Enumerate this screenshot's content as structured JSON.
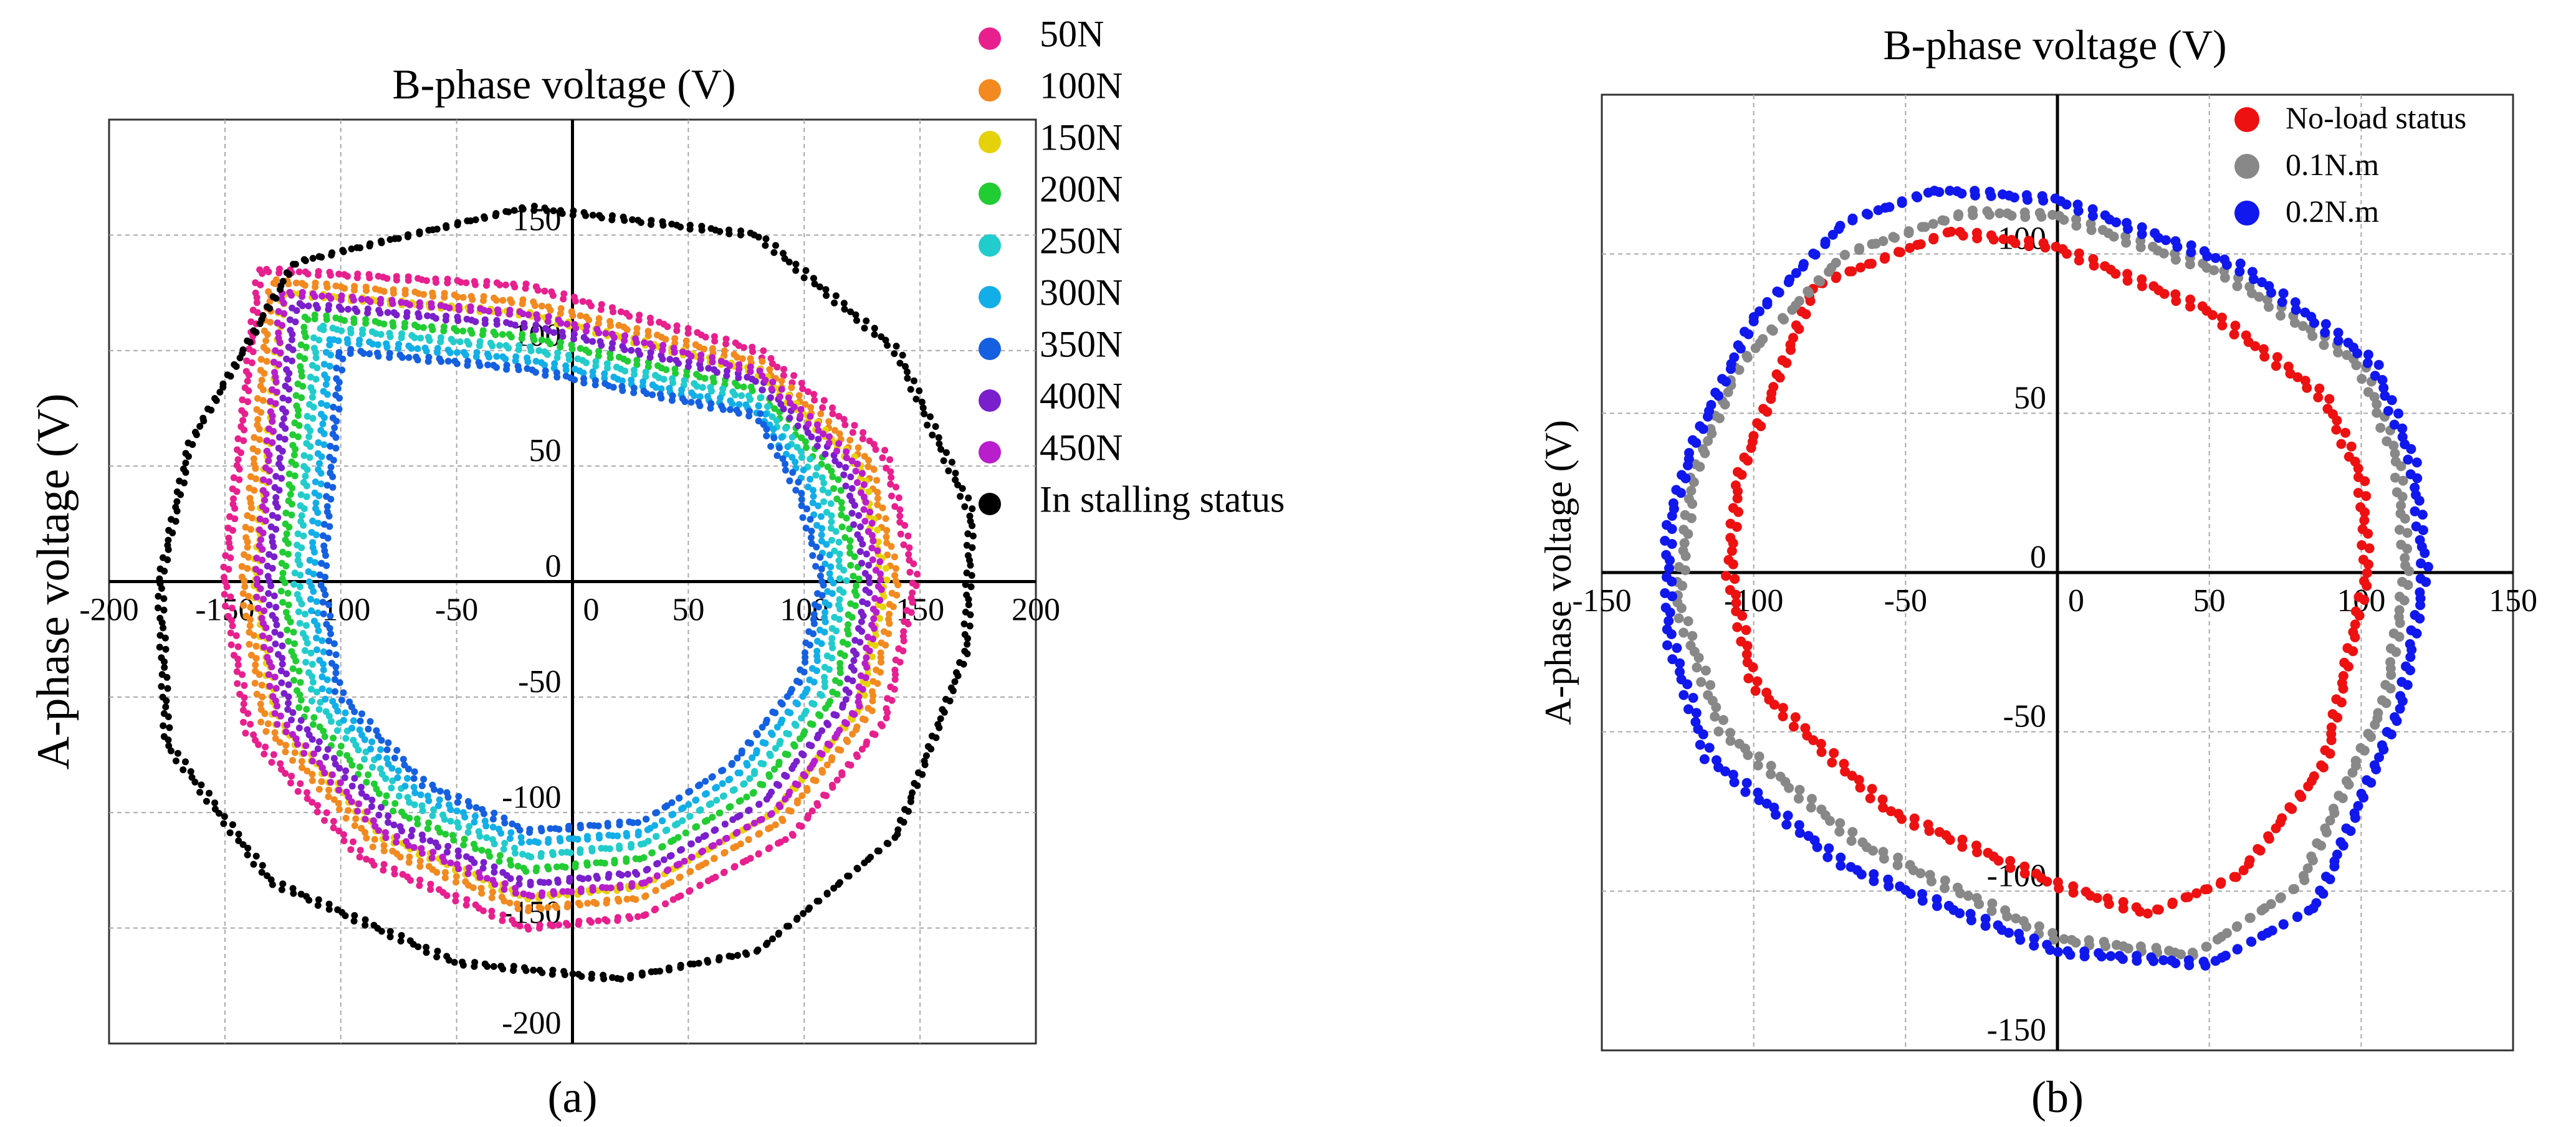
{
  "chart_data": [
    {
      "type": "scatter",
      "panel_label": "(a)",
      "title": "B-phase voltage (V)",
      "xlabel": "",
      "ylabel": "A-phase voltage (V)",
      "xlim": [
        -200,
        200
      ],
      "ylim": [
        -200,
        200
      ],
      "x_ticks": [
        -200,
        -150,
        -100,
        -50,
        0,
        50,
        100,
        150,
        200
      ],
      "y_ticks": [
        150,
        100,
        50,
        0,
        -50,
        -100,
        -150,
        -200
      ],
      "grid": true,
      "legend_position": "right",
      "series": [
        {
          "name": "50N",
          "color": "#e8208e",
          "shape": [
            [
              -135,
              135
            ],
            [
              -20,
              128
            ],
            [
              80,
              100
            ],
            [
              135,
              55
            ],
            [
              148,
              0
            ],
            [
              135,
              -60
            ],
            [
              95,
              -110
            ],
            [
              30,
              -145
            ],
            [
              -20,
              -150
            ],
            [
              -90,
              -120
            ],
            [
              -140,
              -65
            ],
            [
              -150,
              0
            ]
          ]
        },
        {
          "name": "100N",
          "color": "#f28a20",
          "shape": [
            [
              -130,
              130
            ],
            [
              -20,
              121
            ],
            [
              80,
              95
            ],
            [
              128,
              52
            ],
            [
              140,
              0
            ],
            [
              128,
              -57
            ],
            [
              90,
              -104
            ],
            [
              30,
              -137
            ],
            [
              -20,
              -142
            ],
            [
              -85,
              -114
            ],
            [
              -133,
              -62
            ],
            [
              -142,
              0
            ]
          ]
        },
        {
          "name": "150N",
          "color": "#e6d20a",
          "shape": [
            [
              -125,
              125
            ],
            [
              -20,
              116
            ],
            [
              80,
              91
            ],
            [
              124,
              50
            ],
            [
              135,
              0
            ],
            [
              124,
              -55
            ],
            [
              87,
              -100
            ],
            [
              30,
              -132
            ],
            [
              -20,
              -137
            ],
            [
              -82,
              -110
            ],
            [
              -128,
              -60
            ],
            [
              -137,
              0
            ]
          ]
        },
        {
          "name": "200N",
          "color": "#22cc33",
          "shape": [
            [
              -115,
              115
            ],
            [
              -20,
              106
            ],
            [
              80,
              83
            ],
            [
              113,
              46
            ],
            [
              123,
              0
            ],
            [
              113,
              -50
            ],
            [
              79,
              -91
            ],
            [
              30,
              -120
            ],
            [
              -20,
              -125
            ],
            [
              -75,
              -100
            ],
            [
              -117,
              -55
            ],
            [
              -125,
              0
            ]
          ]
        },
        {
          "name": "250N",
          "color": "#22cccc",
          "shape": [
            [
              -110,
              110
            ],
            [
              -20,
              101
            ],
            [
              80,
              79
            ],
            [
              108,
              44
            ],
            [
              117,
              0
            ],
            [
              108,
              -48
            ],
            [
              75,
              -87
            ],
            [
              30,
              -114
            ],
            [
              -20,
              -119
            ],
            [
              -71,
              -95
            ],
            [
              -111,
              -52
            ],
            [
              -119,
              0
            ]
          ]
        },
        {
          "name": "300N",
          "color": "#12aee8",
          "shape": [
            [
              -105,
              105
            ],
            [
              -20,
              96
            ],
            [
              80,
              75
            ],
            [
              103,
              41
            ],
            [
              112,
              0
            ],
            [
              103,
              -45
            ],
            [
              72,
              -83
            ],
            [
              30,
              -109
            ],
            [
              -20,
              -113
            ],
            [
              -68,
              -91
            ],
            [
              -106,
              -50
            ],
            [
              -113,
              0
            ]
          ]
        },
        {
          "name": "350N",
          "color": "#1560e0",
          "shape": [
            [
              -100,
              100
            ],
            [
              -20,
              92
            ],
            [
              80,
              72
            ],
            [
              98,
              39
            ],
            [
              108,
              0
            ],
            [
              98,
              -43
            ],
            [
              69,
              -79
            ],
            [
              30,
              -104
            ],
            [
              -20,
              -108
            ],
            [
              -65,
              -87
            ],
            [
              -101,
              -48
            ],
            [
              -108,
              0
            ]
          ]
        },
        {
          "name": "400N",
          "color": "#7a1fcc",
          "shape": [
            [
              -120,
              120
            ],
            [
              -20,
              111
            ],
            [
              80,
              87
            ],
            [
              118,
              48
            ],
            [
              128,
              0
            ],
            [
              118,
              -52
            ],
            [
              83,
              -95
            ],
            [
              30,
              -126
            ],
            [
              -20,
              -131
            ],
            [
              -78,
              -105
            ],
            [
              -122,
              -57
            ],
            [
              -131,
              0
            ]
          ]
        },
        {
          "name": "450N",
          "color": "#b81ecb",
          "shape": [
            [
              -125,
              125
            ],
            [
              -20,
              116
            ],
            [
              80,
              91
            ],
            [
              123,
              50
            ],
            [
              133,
              0
            ],
            [
              123,
              -55
            ],
            [
              87,
              -100
            ],
            [
              30,
              -131
            ],
            [
              -20,
              -136
            ],
            [
              -82,
              -109
            ],
            [
              -127,
              -60
            ],
            [
              -136,
              0
            ]
          ]
        },
        {
          "name": "In stalling status",
          "color": "#000000",
          "shape": [
            [
              -120,
              138
            ],
            [
              -20,
              162
            ],
            [
              80,
              150
            ],
            [
              140,
              100
            ],
            [
              172,
              30
            ],
            [
              170,
              -30
            ],
            [
              140,
              -110
            ],
            [
              80,
              -160
            ],
            [
              20,
              -172
            ],
            [
              -50,
              -165
            ],
            [
              -130,
              -130
            ],
            [
              -175,
              -70
            ],
            [
              -178,
              0
            ],
            [
              -165,
              60
            ]
          ]
        }
      ]
    },
    {
      "type": "scatter",
      "panel_label": "(b)",
      "title": "B-phase voltage (V)",
      "xlabel": "",
      "ylabel": "A-phase voltage (V)",
      "xlim": [
        -150,
        150
      ],
      "ylim": [
        -150,
        150
      ],
      "x_ticks": [
        -150,
        -100,
        -50,
        0,
        50,
        100,
        150
      ],
      "y_ticks": [
        100,
        50,
        0,
        -50,
        -100,
        -150
      ],
      "grid": true,
      "legend_position": "top-right",
      "series": [
        {
          "name": "No-load status",
          "color": "#ee1111",
          "shape": [
            [
              -35,
              107
            ],
            [
              0,
              102
            ],
            [
              50,
              82
            ],
            [
              88,
              55
            ],
            [
              100,
              30
            ],
            [
              102,
              0
            ],
            [
              88,
              -60
            ],
            [
              60,
              -95
            ],
            [
              30,
              -107
            ],
            [
              0,
              -98
            ],
            [
              -55,
              -75
            ],
            [
              -100,
              -35
            ],
            [
              -108,
              0
            ],
            [
              -105,
              30
            ],
            [
              -80,
              90
            ]
          ]
        },
        {
          "name": "0.1N.m",
          "color": "#888888",
          "shape": [
            [
              -30,
              113
            ],
            [
              0,
              112
            ],
            [
              55,
              94
            ],
            [
              100,
              65
            ],
            [
              112,
              35
            ],
            [
              115,
              0
            ],
            [
              108,
              -40
            ],
            [
              80,
              -98
            ],
            [
              45,
              -120
            ],
            [
              0,
              -115
            ],
            [
              -65,
              -85
            ],
            [
              -110,
              -50
            ],
            [
              -125,
              -10
            ],
            [
              -120,
              30
            ],
            [
              -105,
              65
            ],
            [
              -70,
              100
            ]
          ]
        },
        {
          "name": "0.2N.m",
          "color": "#1018ee",
          "shape": [
            [
              -40,
              120
            ],
            [
              -25,
              119
            ],
            [
              0,
              117
            ],
            [
              60,
              96
            ],
            [
              104,
              66
            ],
            [
              117,
              35
            ],
            [
              121,
              0
            ],
            [
              113,
              -42
            ],
            [
              85,
              -105
            ],
            [
              50,
              -123
            ],
            [
              0,
              -119
            ],
            [
              -70,
              -92
            ],
            [
              -115,
              -58
            ],
            [
              -128,
              -20
            ],
            [
              -128,
              15
            ],
            [
              -120,
              40
            ],
            [
              -100,
              80
            ],
            [
              -70,
              110
            ]
          ]
        }
      ]
    }
  ]
}
